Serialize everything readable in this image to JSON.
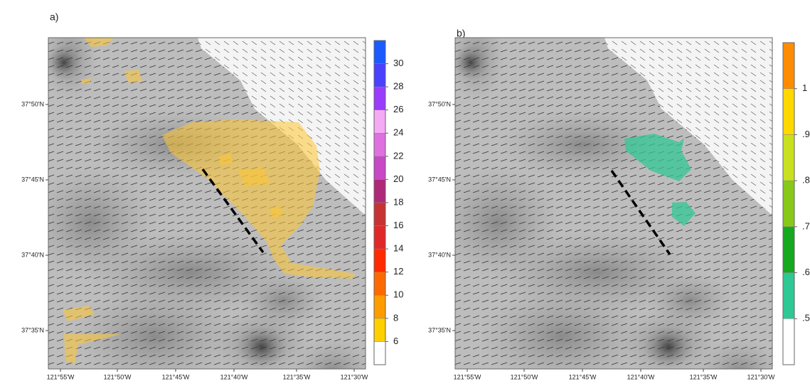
{
  "panels": [
    {
      "label": "a)",
      "lat_labels": [
        "37°50'N",
        "37°45'N",
        "37°40'N",
        "37°35'N"
      ],
      "lon_labels": [
        "121°55'W",
        "121°50'W",
        "121°45'W",
        "121°40'W",
        "121°35'W",
        "121°30'W"
      ],
      "colorbar": {
        "ticks": [
          6,
          8,
          10,
          12,
          14,
          16,
          18,
          20,
          22,
          24,
          26,
          28,
          30
        ],
        "colors": [
          "#ffffff",
          "#ffd000",
          "#ff9c00",
          "#ff6a00",
          "#ff2a00",
          "#e02828",
          "#c83232",
          "#b02878",
          "#c848c8",
          "#e070e0",
          "#f4aaf4",
          "#9a3cff",
          "#4a40ff",
          "#1a5aff"
        ]
      }
    },
    {
      "label": "b)",
      "lat_labels": [
        "37°50'N",
        "37°45'N",
        "37°40'N",
        "37°35'N"
      ],
      "lon_labels": [
        "121°55'W",
        "121°50'W",
        "121°45'W",
        "121°40'W",
        "121°35'W",
        "121°30'W"
      ],
      "colorbar": {
        "ticks": [
          {
            "value": 0.5,
            "label": ".5"
          },
          {
            "value": 0.6,
            "label": ".6"
          },
          {
            "value": 0.7,
            "label": ".7"
          },
          {
            "value": 0.8,
            "label": ".8"
          },
          {
            "value": 0.9,
            "label": ".9"
          },
          1
        ],
        "colors": [
          "#ffffff",
          "#2ec894",
          "#16a81e",
          "#88c818",
          "#c8e01e",
          "#ffd800",
          "#ff8c00"
        ]
      }
    }
  ]
}
